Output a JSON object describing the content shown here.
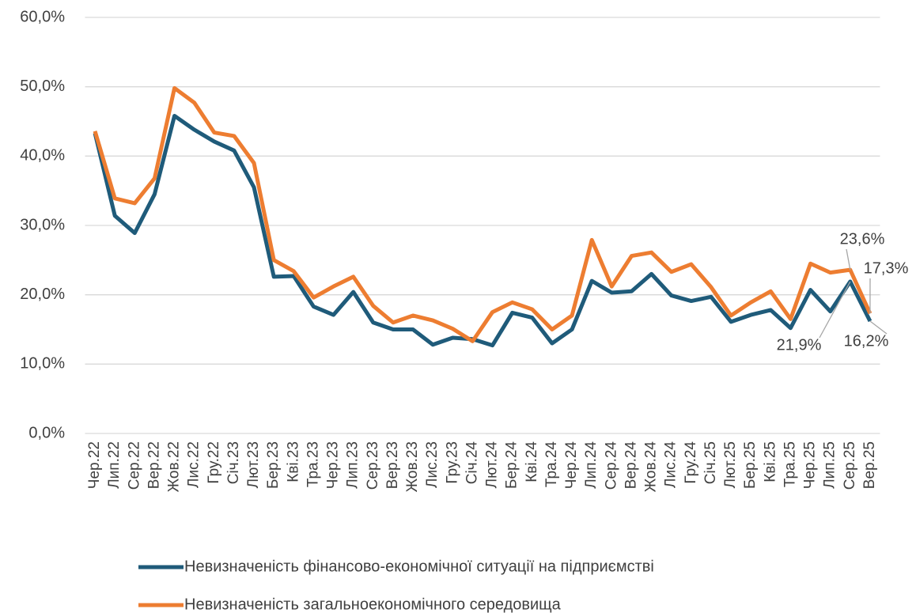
{
  "chart_data": {
    "type": "line",
    "categories": [
      "Чер.22",
      "Лип.22",
      "Сер.22",
      "Вер.22",
      "Жов.22",
      "Лис.22",
      "Гру.22",
      "Січ.23",
      "Лют.23",
      "Бер.23",
      "Кві.23",
      "Тра.23",
      "Чер.23",
      "Лип.23",
      "Сер.23",
      "Вер.23",
      "Жов.23",
      "Лис.23",
      "Гру.23",
      "Січ.24",
      "Лют.24",
      "Бер.24",
      "Кві.24",
      "Тра.24",
      "Чер.24",
      "Лип.24",
      "Сер.24",
      "Вер.24",
      "Жов.24",
      "Лис.24",
      "Гру.24",
      "Січ.25",
      "Лют.25",
      "Бер.25",
      "Кві.25",
      "Тра.25",
      "Чер.25",
      "Лип.25",
      "Сер.25",
      "Вер.25"
    ],
    "series": [
      {
        "name": "Невизначеність фінансово-економічної ситуації на підприємстві",
        "color": "#1f5b7a",
        "values": [
          43.3,
          31.4,
          28.9,
          34.5,
          45.8,
          43.8,
          42.1,
          40.8,
          35.5,
          22.6,
          22.7,
          18.3,
          17.1,
          20.4,
          16.0,
          15.0,
          15.0,
          12.8,
          13.8,
          13.6,
          12.7,
          17.4,
          16.7,
          13.0,
          15.0,
          22.0,
          20.3,
          20.5,
          23.0,
          19.9,
          19.1,
          19.7,
          16.1,
          17.1,
          17.8,
          15.2,
          20.7,
          17.6,
          21.9,
          16.2
        ],
        "value_labels": [
          null,
          null,
          null,
          null,
          null,
          null,
          null,
          null,
          null,
          null,
          null,
          null,
          null,
          null,
          null,
          null,
          null,
          null,
          null,
          null,
          null,
          null,
          null,
          null,
          null,
          null,
          null,
          null,
          null,
          null,
          null,
          null,
          null,
          null,
          null,
          null,
          null,
          null,
          "21,9%",
          "16,2%"
        ]
      },
      {
        "name": "Невизначеність загальноекономічного середовища",
        "color": "#ed7d31",
        "values": [
          43.6,
          33.9,
          33.2,
          36.8,
          49.8,
          47.7,
          43.4,
          42.9,
          39.0,
          25.0,
          23.4,
          19.6,
          21.2,
          22.6,
          18.4,
          16.0,
          17.0,
          16.3,
          15.1,
          13.3,
          17.5,
          18.9,
          17.9,
          15.0,
          17.0,
          27.9,
          21.2,
          25.6,
          26.1,
          23.3,
          24.4,
          21.1,
          17.0,
          18.9,
          20.5,
          16.5,
          24.5,
          23.2,
          23.6,
          17.3
        ],
        "value_labels": [
          null,
          null,
          null,
          null,
          null,
          null,
          null,
          null,
          null,
          null,
          null,
          null,
          null,
          null,
          null,
          null,
          null,
          null,
          null,
          null,
          null,
          null,
          null,
          null,
          null,
          null,
          null,
          null,
          null,
          null,
          null,
          null,
          null,
          null,
          null,
          null,
          null,
          null,
          "23,6%",
          "17,3%"
        ]
      }
    ],
    "ylim": [
      0,
      60
    ],
    "yticks": [
      {
        "value": 0,
        "label": "0,0%"
      },
      {
        "value": 10,
        "label": "10,0%"
      },
      {
        "value": 20,
        "label": "20,0%"
      },
      {
        "value": 30,
        "label": "30,0%"
      },
      {
        "value": 40,
        "label": "40,0%"
      },
      {
        "value": 50,
        "label": "50,0%"
      },
      {
        "value": 60,
        "label": "60,0%"
      }
    ],
    "grid": true,
    "legend": "bottom"
  }
}
